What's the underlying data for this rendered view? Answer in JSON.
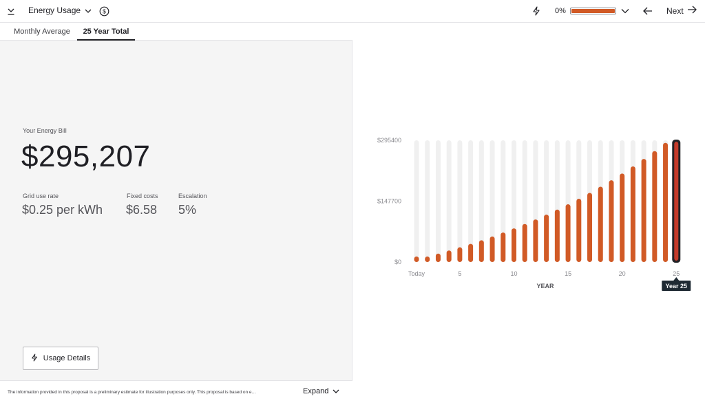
{
  "topbar": {
    "title": "Energy Usage",
    "progress_label": "0%",
    "progress_value": 1.0,
    "next_label": "Next",
    "icons": [
      "collapse-icon",
      "chevron-down-icon",
      "dollar-icon",
      "bolt-icon",
      "arrow-left-icon",
      "arrow-right-icon"
    ]
  },
  "tabs": [
    {
      "label": "Monthly Average",
      "active": false
    },
    {
      "label": "25 Year Total",
      "active": true
    }
  ],
  "bill": {
    "label": "Your Energy Bill",
    "value": "$295,207"
  },
  "stats": [
    {
      "label": "Grid use rate",
      "value": "$0.25 per kWh"
    },
    {
      "label": "Fixed costs",
      "value": "$6.58"
    },
    {
      "label": "Escalation",
      "value": "5%"
    }
  ],
  "usage_button": {
    "label": "Usage Details"
  },
  "footer": {
    "disclaimer": "The information provided in this proposal is a preliminary estimate for illustration purposes only. This proposal is based on e…",
    "expand_label": "Expand"
  },
  "colors": {
    "accent": "#d15a26",
    "track": "#f0f0f0",
    "selected": "#c43a2a",
    "text": "#1f1f24"
  },
  "chart_data": {
    "type": "bar",
    "categories": [
      "Today",
      "2",
      "3",
      "4",
      "5",
      "6",
      "7",
      "8",
      "9",
      "10",
      "11",
      "12",
      "13",
      "14",
      "15",
      "16",
      "17",
      "18",
      "19",
      "20",
      "21",
      "22",
      "23",
      "24",
      "25"
    ],
    "x_tick_labels": [
      "Today",
      "5",
      "10",
      "15",
      "20",
      "25"
    ],
    "x_tick_indices": [
      0,
      4,
      9,
      14,
      19,
      24
    ],
    "y_tick_labels": [
      "$295400",
      "$147700",
      "$0"
    ],
    "values": [
      6500,
      13300,
      20400,
      27900,
      35800,
      44100,
      52800,
      61900,
      71500,
      81600,
      92200,
      103300,
      115000,
      127200,
      140100,
      153600,
      167800,
      182700,
      198300,
      214700,
      232000,
      250100,
      269100,
      289100,
      295207
    ],
    "ylim": [
      0,
      295400
    ],
    "xlabel": "YEAR",
    "ylabel": "",
    "selected_index": 24,
    "selected_label": "Year 25",
    "grid": false
  }
}
